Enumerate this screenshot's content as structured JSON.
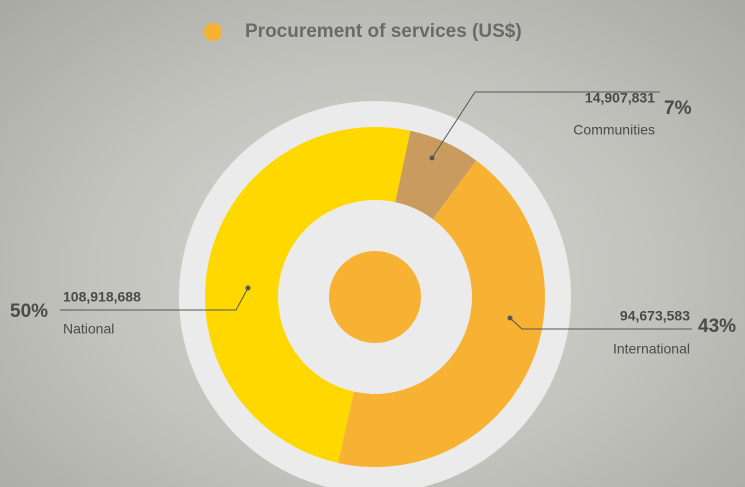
{
  "chart_data": {
    "type": "donut",
    "title": "Procurement of services (US$)",
    "legend_color": "#f7b234",
    "categories": [
      "Communities",
      "International",
      "National"
    ],
    "values": [
      14907831,
      94673583,
      108918688
    ],
    "value_labels": [
      "14,907,831",
      "94,673,583",
      "108,918,688"
    ],
    "percent_labels": [
      "7%",
      "43%",
      "50%"
    ],
    "colors": [
      "#c99b5e",
      "#f7b234",
      "#ffd800"
    ]
  }
}
